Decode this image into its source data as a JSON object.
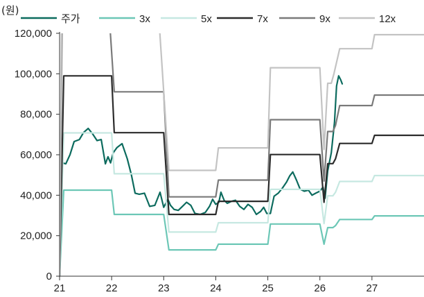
{
  "chart_data": {
    "type": "line",
    "unit_label": "(원)",
    "x_ticks": [
      "21",
      "22",
      "23",
      "24",
      "25",
      "26",
      "27"
    ],
    "x_range": [
      21,
      28
    ],
    "ylim": [
      0,
      120000
    ],
    "y_ticks": [
      0,
      20000,
      40000,
      60000,
      80000,
      100000,
      120000
    ],
    "y_tick_labels": [
      "0",
      "20,000",
      "40,000",
      "60,000",
      "80,000",
      "100,000",
      "120,000"
    ],
    "grid": false,
    "legend_position": "top",
    "series": [
      {
        "name": "주가",
        "color": "#0c6b5e",
        "width": 2.2,
        "points": [
          [
            21.0,
            0
          ],
          [
            21.05,
            56000
          ],
          [
            21.12,
            55500
          ],
          [
            21.2,
            60000
          ],
          [
            21.28,
            66500
          ],
          [
            21.38,
            67500
          ],
          [
            21.46,
            71000
          ],
          [
            21.55,
            73000
          ],
          [
            21.63,
            70500
          ],
          [
            21.72,
            67000
          ],
          [
            21.8,
            67500
          ],
          [
            21.88,
            55500
          ],
          [
            21.93,
            59000
          ],
          [
            21.98,
            56000
          ],
          [
            22.03,
            61000
          ],
          [
            22.1,
            63500
          ],
          [
            22.2,
            65500
          ],
          [
            22.3,
            58000
          ],
          [
            22.38,
            50000
          ],
          [
            22.45,
            41000
          ],
          [
            22.53,
            40500
          ],
          [
            22.63,
            41000
          ],
          [
            22.73,
            34500
          ],
          [
            22.83,
            35000
          ],
          [
            22.93,
            41500
          ],
          [
            23.0,
            34000
          ],
          [
            23.08,
            38000
          ],
          [
            23.13,
            35000
          ],
          [
            23.2,
            33000
          ],
          [
            23.28,
            32500
          ],
          [
            23.36,
            34500
          ],
          [
            23.44,
            36500
          ],
          [
            23.52,
            35000
          ],
          [
            23.6,
            31000
          ],
          [
            23.7,
            30500
          ],
          [
            23.8,
            31500
          ],
          [
            23.88,
            34500
          ],
          [
            23.94,
            38000
          ],
          [
            24.0,
            35500
          ],
          [
            24.06,
            36500
          ],
          [
            24.1,
            41500
          ],
          [
            24.16,
            37500
          ],
          [
            24.22,
            36000
          ],
          [
            24.3,
            37000
          ],
          [
            24.38,
            37500
          ],
          [
            24.46,
            34500
          ],
          [
            24.54,
            33000
          ],
          [
            24.62,
            35500
          ],
          [
            24.7,
            34000
          ],
          [
            24.78,
            30500
          ],
          [
            24.86,
            32000
          ],
          [
            24.92,
            34000
          ],
          [
            24.98,
            31000
          ],
          [
            25.05,
            31000
          ],
          [
            25.12,
            39500
          ],
          [
            25.2,
            41000
          ],
          [
            25.28,
            43500
          ],
          [
            25.36,
            46500
          ],
          [
            25.42,
            49500
          ],
          [
            25.48,
            51500
          ],
          [
            25.55,
            47500
          ],
          [
            25.62,
            43000
          ],
          [
            25.7,
            42000
          ],
          [
            25.78,
            42500
          ],
          [
            25.85,
            40000
          ],
          [
            25.92,
            41000
          ],
          [
            26.0,
            42000
          ],
          [
            26.06,
            44000
          ],
          [
            26.1,
            38500
          ],
          [
            26.15,
            52000
          ],
          [
            26.22,
            61000
          ],
          [
            26.28,
            76000
          ],
          [
            26.32,
            94000
          ],
          [
            26.36,
            99000
          ],
          [
            26.4,
            97000
          ],
          [
            26.43,
            95000
          ]
        ]
      },
      {
        "name": "3x",
        "color": "#6cc7b6",
        "width": 2.2,
        "points": [
          [
            21.0,
            0
          ],
          [
            21.08,
            42500
          ],
          [
            22.0,
            42500
          ],
          [
            22.05,
            30500
          ],
          [
            23.0,
            30500
          ],
          [
            23.1,
            13000
          ],
          [
            24.0,
            13000
          ],
          [
            24.05,
            15800
          ],
          [
            25.0,
            15800
          ],
          [
            25.05,
            25800
          ],
          [
            26.0,
            25800
          ],
          [
            26.08,
            15800
          ],
          [
            26.15,
            24000
          ],
          [
            26.25,
            24000
          ],
          [
            26.3,
            25000
          ],
          [
            26.38,
            28000
          ],
          [
            27.0,
            28000
          ],
          [
            27.05,
            29800
          ],
          [
            28.0,
            29800
          ]
        ]
      },
      {
        "name": "5x",
        "color": "#c6e8e1",
        "width": 2.2,
        "points": [
          [
            21.0,
            0
          ],
          [
            21.08,
            70800
          ],
          [
            22.0,
            70800
          ],
          [
            22.05,
            50600
          ],
          [
            23.0,
            50600
          ],
          [
            23.1,
            21800
          ],
          [
            24.0,
            21800
          ],
          [
            24.05,
            26400
          ],
          [
            25.0,
            26400
          ],
          [
            25.05,
            42900
          ],
          [
            26.0,
            42900
          ],
          [
            26.08,
            26000
          ],
          [
            26.15,
            39700
          ],
          [
            26.25,
            39700
          ],
          [
            26.3,
            41500
          ],
          [
            26.38,
            46800
          ],
          [
            27.0,
            46800
          ],
          [
            27.05,
            49700
          ],
          [
            28.0,
            49700
          ]
        ]
      },
      {
        "name": "7x",
        "color": "#2b2b2b",
        "width": 2.2,
        "points": [
          [
            21.0,
            0
          ],
          [
            21.08,
            99000
          ],
          [
            22.0,
            99000
          ],
          [
            22.05,
            70900
          ],
          [
            23.0,
            70900
          ],
          [
            23.1,
            30500
          ],
          [
            24.0,
            30500
          ],
          [
            24.05,
            37000
          ],
          [
            25.0,
            37000
          ],
          [
            25.05,
            60100
          ],
          [
            26.0,
            60100
          ],
          [
            26.08,
            36500
          ],
          [
            26.15,
            55600
          ],
          [
            26.25,
            55600
          ],
          [
            26.3,
            58000
          ],
          [
            26.38,
            65600
          ],
          [
            27.0,
            65600
          ],
          [
            27.05,
            69600
          ],
          [
            28.0,
            69600
          ]
        ]
      },
      {
        "name": "9x",
        "color": "#7a7a7a",
        "width": 2.2,
        "points": [
          [
            21.0,
            0
          ],
          [
            21.05,
            130000
          ],
          [
            21.95,
            130000
          ],
          [
            22.05,
            91100
          ],
          [
            23.0,
            91100
          ],
          [
            23.1,
            39200
          ],
          [
            24.0,
            39200
          ],
          [
            24.05,
            47500
          ],
          [
            25.0,
            47500
          ],
          [
            25.05,
            77300
          ],
          [
            26.0,
            77300
          ],
          [
            26.08,
            47000
          ],
          [
            26.15,
            71500
          ],
          [
            26.25,
            71500
          ],
          [
            26.3,
            74500
          ],
          [
            26.38,
            84300
          ],
          [
            27.0,
            84300
          ],
          [
            27.05,
            89500
          ],
          [
            28.0,
            89500
          ]
        ]
      },
      {
        "name": "12x",
        "color": "#c3c3c3",
        "width": 2.2,
        "points": [
          [
            21.0,
            0
          ],
          [
            21.04,
            130000
          ],
          [
            22.9,
            130000
          ],
          [
            23.1,
            52300
          ],
          [
            24.0,
            52300
          ],
          [
            24.05,
            63400
          ],
          [
            25.0,
            63400
          ],
          [
            25.05,
            103000
          ],
          [
            26.0,
            103000
          ],
          [
            26.08,
            62600
          ],
          [
            26.15,
            95300
          ],
          [
            26.22,
            95300
          ],
          [
            26.27,
            100000
          ],
          [
            26.38,
            112400
          ],
          [
            27.0,
            112400
          ],
          [
            27.05,
            119300
          ],
          [
            28.0,
            119300
          ]
        ]
      }
    ]
  }
}
